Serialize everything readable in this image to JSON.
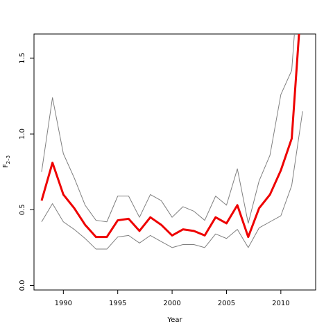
{
  "chart_data": {
    "type": "line",
    "title": "",
    "xlabel": "Year",
    "ylabel_main": "F",
    "ylabel_sub": "2–3",
    "xlim": [
      1987.3,
      2013.2
    ],
    "ylim": [
      -0.03,
      1.66
    ],
    "x_ticks": [
      1990,
      1995,
      2000,
      2005,
      2010
    ],
    "y_ticks": [
      0.0,
      0.5,
      1.0,
      1.5
    ],
    "y_tick_labels": [
      "0.0",
      "0.5",
      "1.0",
      "1.5"
    ],
    "grid": false,
    "colors": {
      "estimate": "#ee0000",
      "bounds": "#7f7f7f",
      "axis": "#000000"
    },
    "x": [
      1988,
      1989,
      1990,
      1991,
      1992,
      1993,
      1994,
      1995,
      1996,
      1997,
      1998,
      1999,
      2000,
      2001,
      2002,
      2003,
      2004,
      2005,
      2006,
      2007,
      2008,
      2009,
      2010,
      2011,
      2012
    ],
    "series": [
      {
        "role": "upper",
        "values": [
          0.75,
          1.24,
          0.87,
          0.71,
          0.53,
          0.43,
          0.42,
          0.59,
          0.59,
          0.45,
          0.6,
          0.56,
          0.45,
          0.52,
          0.49,
          0.43,
          0.59,
          0.53,
          0.77,
          0.41,
          0.69,
          0.86,
          1.26,
          1.42,
          2.4
        ]
      },
      {
        "role": "estimate",
        "values": [
          0.56,
          0.81,
          0.6,
          0.51,
          0.4,
          0.32,
          0.32,
          0.43,
          0.44,
          0.36,
          0.45,
          0.4,
          0.33,
          0.37,
          0.36,
          0.33,
          0.45,
          0.41,
          0.53,
          0.32,
          0.51,
          0.6,
          0.76,
          0.97,
          2.0
        ]
      },
      {
        "role": "lower",
        "values": [
          0.42,
          0.54,
          0.42,
          0.37,
          0.31,
          0.24,
          0.24,
          0.32,
          0.33,
          0.28,
          0.33,
          0.29,
          0.25,
          0.27,
          0.27,
          0.25,
          0.34,
          0.31,
          0.37,
          0.25,
          0.38,
          0.42,
          0.46,
          0.66,
          1.15
        ]
      }
    ]
  }
}
